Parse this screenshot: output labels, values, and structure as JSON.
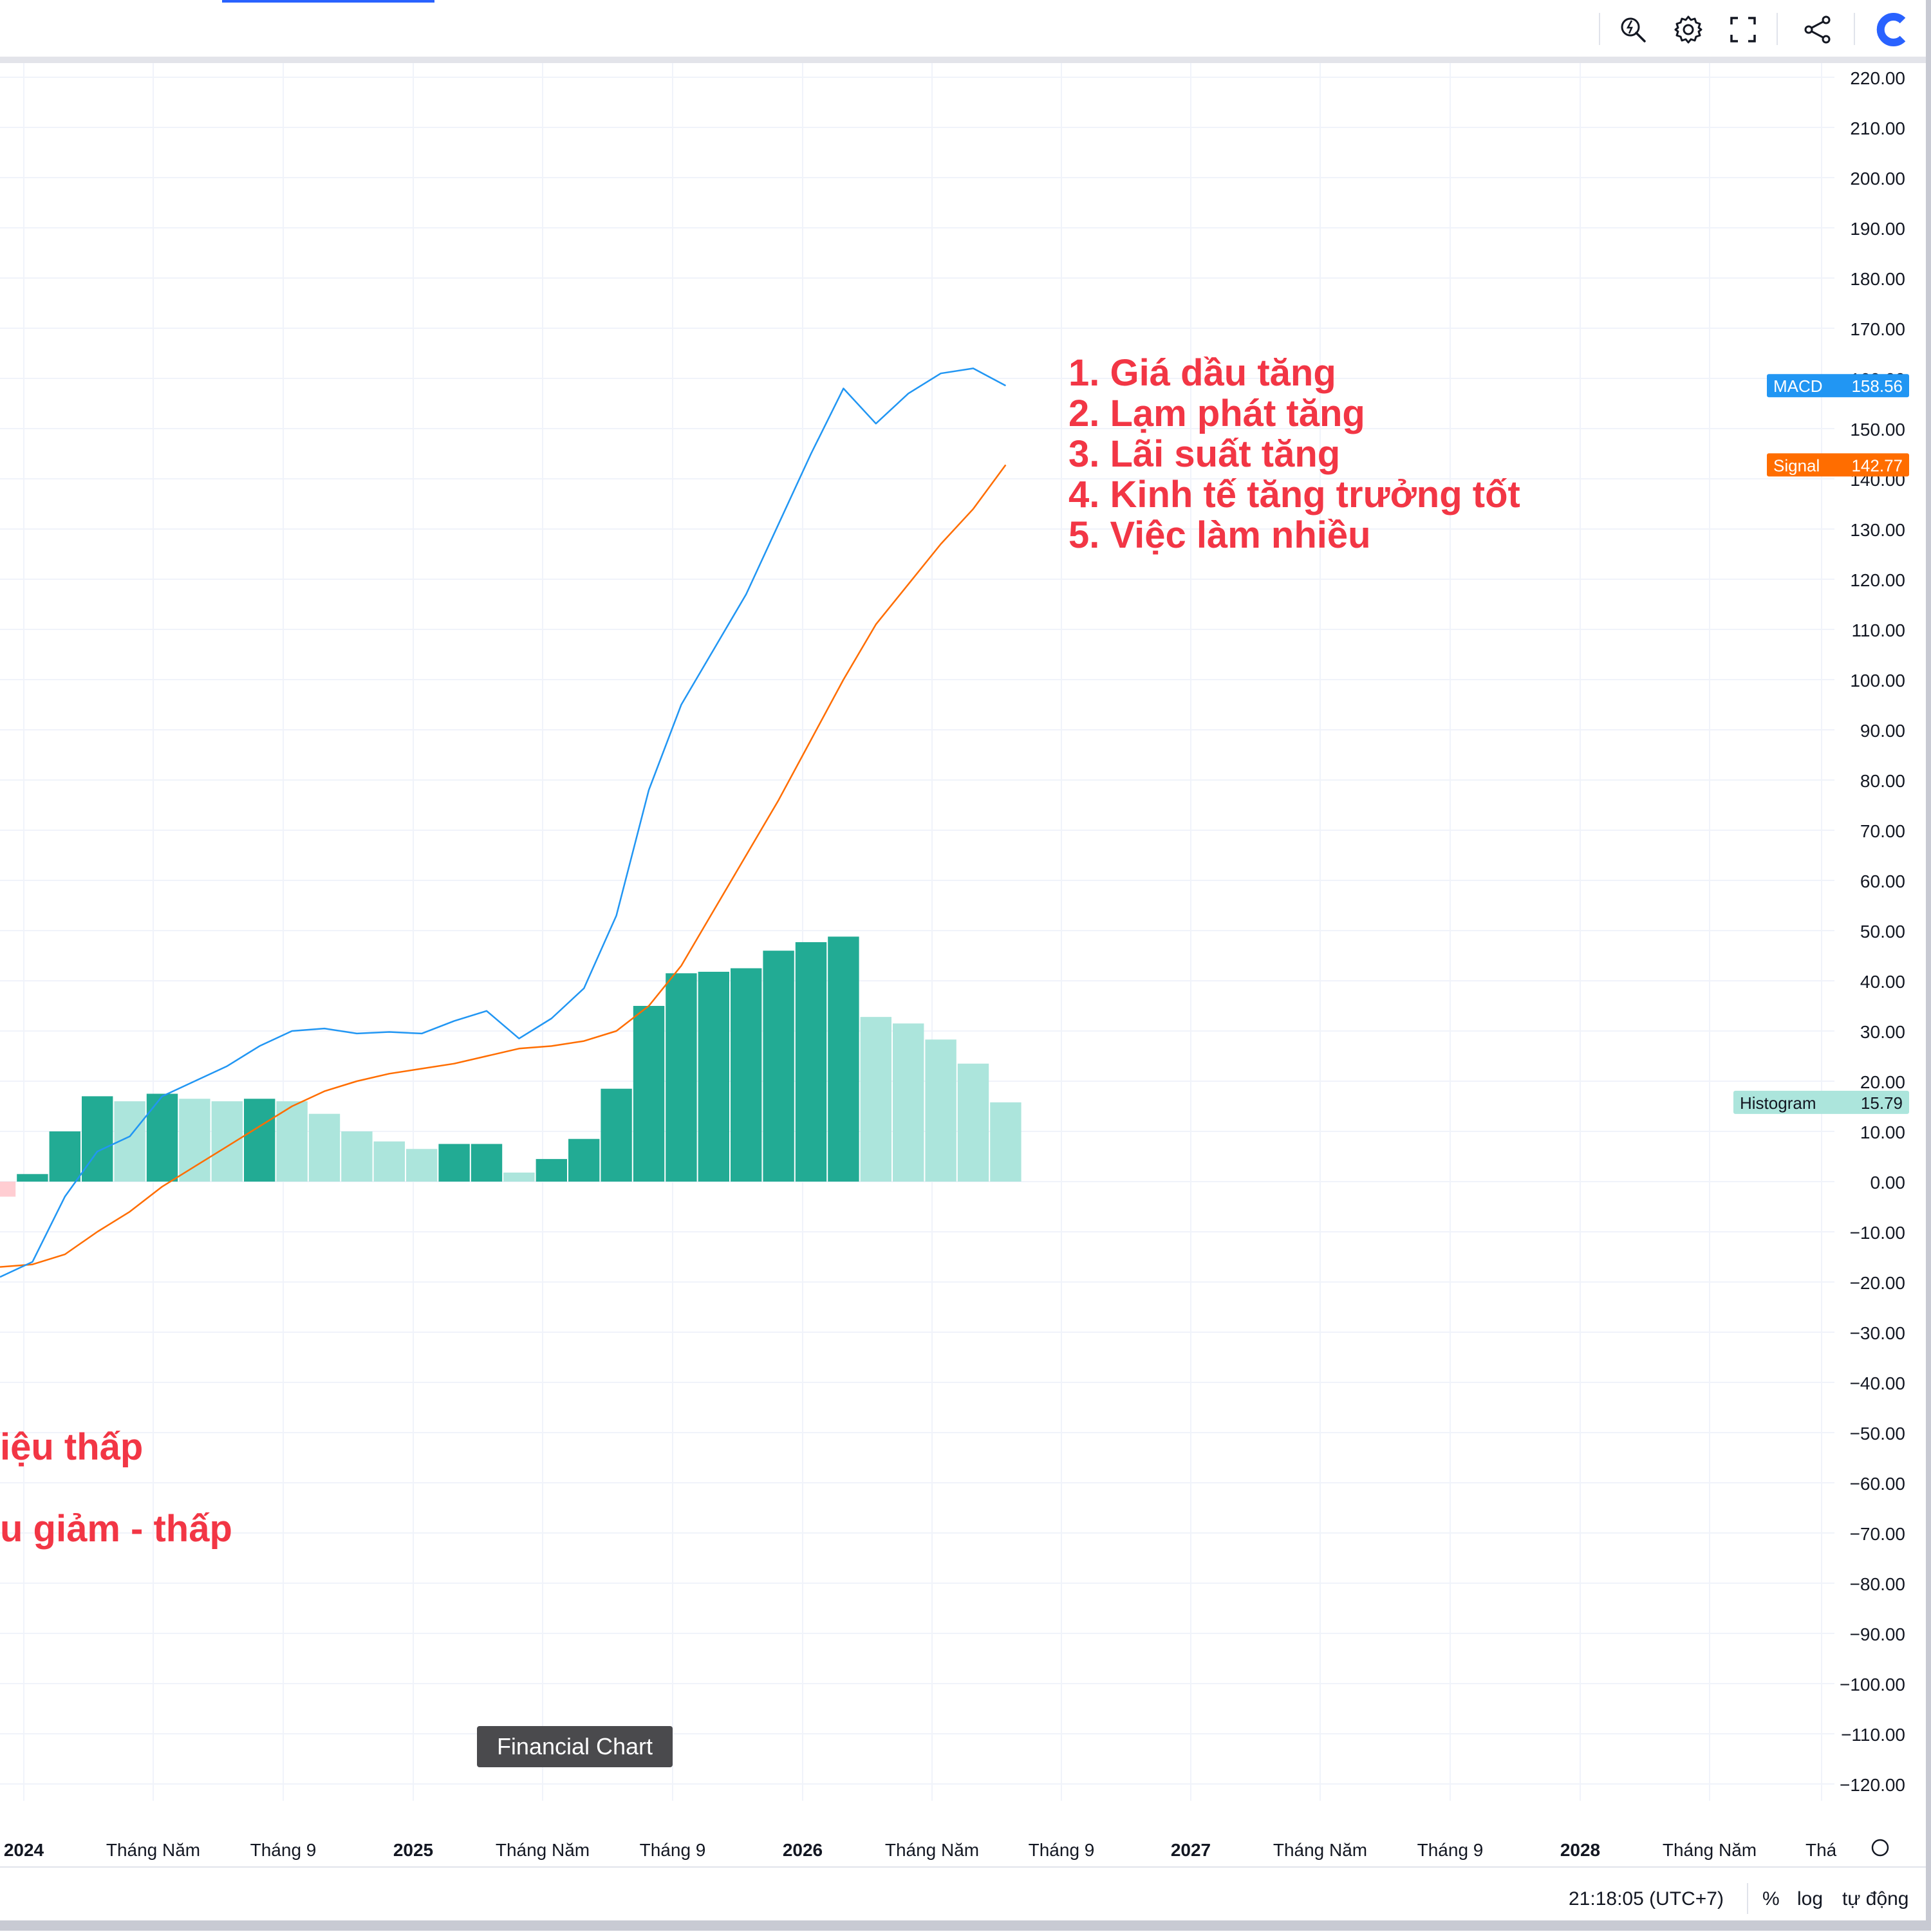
{
  "toolbar": {
    "icons": [
      "quick-search-icon",
      "settings-icon",
      "fullscreen-icon",
      "share-icon",
      "brand-logo-icon"
    ]
  },
  "colors": {
    "macd": "#2196f3",
    "signal": "#ff6d00",
    "hist_strong": "#22ab94",
    "hist_light": "#ace5dc",
    "hist_negative": "#ffcdd2",
    "annotation": "#f23645",
    "grid": "#f0f3fa",
    "axis_text": "#131722"
  },
  "chart_data": {
    "type": "line",
    "indicator": "MACD",
    "ylim": [
      -125,
      225
    ],
    "y_ticks": [
      "220.00",
      "210.00",
      "200.00",
      "190.00",
      "180.00",
      "170.00",
      "160.00",
      "150.00",
      "140.00",
      "130.00",
      "120.00",
      "110.00",
      "100.00",
      "90.00",
      "80.00",
      "70.00",
      "60.00",
      "50.00",
      "40.00",
      "30.00",
      "20.00",
      "10.00",
      "0.00",
      "−10.00",
      "−20.00",
      "−30.00",
      "−40.00",
      "−50.00",
      "−60.00",
      "−70.00",
      "−80.00",
      "−90.00",
      "−100.00",
      "−110.00",
      "−120.00"
    ],
    "x_labels": [
      "2024",
      "Tháng Năm",
      "Tháng 9",
      "2025",
      "Tháng Năm",
      "Tháng 9",
      "2026",
      "Tháng Năm",
      "Tháng 9",
      "2027",
      "Tháng Năm",
      "Tháng 9",
      "2028",
      "Tháng Năm",
      "Thá"
    ],
    "x_labels_bold": [
      true,
      false,
      false,
      true,
      false,
      false,
      true,
      false,
      false,
      true,
      false,
      false,
      true,
      false,
      false
    ],
    "x": [
      "2023-12",
      "2024-01",
      "2024-02",
      "2024-03",
      "2024-04",
      "2024-05",
      "2024-06",
      "2024-07",
      "2024-08",
      "2024-09",
      "2024-10",
      "2024-11",
      "2024-12",
      "2025-01",
      "2025-02",
      "2025-03",
      "2025-04",
      "2025-05",
      "2025-06",
      "2025-07",
      "2025-08",
      "2025-09",
      "2025-10",
      "2025-11",
      "2025-12",
      "2026-01",
      "2026-02",
      "2026-03",
      "2026-04",
      "2026-05",
      "2026-06",
      "2026-07"
    ],
    "series": [
      {
        "name": "MACD",
        "values": [
          -19,
          -16,
          -3,
          6,
          9,
          17,
          20,
          23,
          27,
          30,
          30.5,
          29.5,
          29.8,
          29.5,
          32,
          34,
          28.5,
          32.5,
          38.5,
          53,
          78,
          95,
          106,
          117,
          131,
          145,
          158,
          151,
          157,
          161,
          162,
          158.56
        ]
      },
      {
        "name": "Signal",
        "values": [
          -17,
          -16.5,
          -14.5,
          -10,
          -6,
          -1,
          3,
          7,
          11,
          15,
          18,
          20,
          21.5,
          22.5,
          23.5,
          25,
          26.5,
          27,
          28,
          30,
          35,
          43,
          54,
          65,
          76,
          88,
          100,
          111,
          119,
          127,
          134,
          142.77
        ]
      },
      {
        "name": "Histogram",
        "values": [
          -3,
          1.5,
          10,
          17,
          16,
          17.5,
          16.5,
          16,
          16.5,
          16,
          13.5,
          10,
          8,
          6.5,
          7.5,
          7.5,
          1.8,
          4.5,
          8.5,
          18.5,
          35,
          41.5,
          41.8,
          42.5,
          46,
          47.7,
          48.8,
          32.8,
          31.5,
          28.3,
          23.5,
          15.79
        ]
      }
    ]
  },
  "labels": {
    "macd": {
      "name": "MACD",
      "value": "158.56"
    },
    "signal": {
      "name": "Signal",
      "value": "142.77"
    },
    "histogram": {
      "name": "Histogram",
      "value": "15.79"
    }
  },
  "annotations": {
    "list": [
      "1. Giá dầu tăng",
      "2. Lạm phát tăng",
      "3. Lãi suất tăng",
      "4. Kinh tế tăng trưởng tốt",
      "5. Việc làm nhiều"
    ],
    "partial_1": "iệu thấp",
    "partial_2": "u giảm - thấp"
  },
  "watermark": "Financial Chart",
  "bottombar": {
    "time": "21:18:05 (UTC+7)",
    "percent": "%",
    "log": "log",
    "auto": "tự động"
  }
}
